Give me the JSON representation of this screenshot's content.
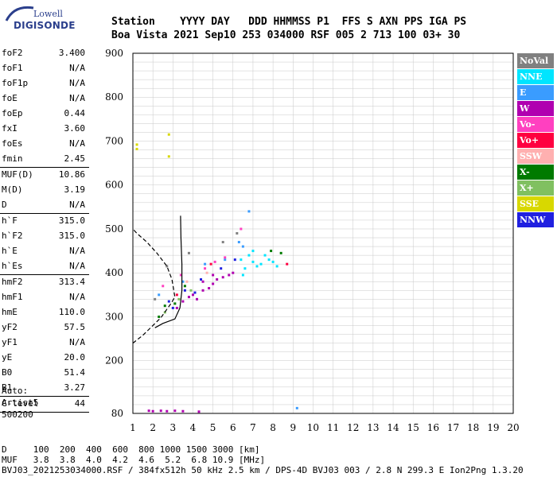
{
  "logo": {
    "line1": "Lowell",
    "line2": "DIGISONDE"
  },
  "header": {
    "row1": "Station    YYYY DAY   DDD HHMMSS P1  FFS S AXN PPS IGA PS",
    "row2": "Boa Vista 2021 Sep10 253 034000 RSF 005 2 713 100 03+ 30"
  },
  "params": [
    {
      "label": "foF2",
      "value": "3.400"
    },
    {
      "label": "foF1",
      "value": "N/A"
    },
    {
      "label": "foF1p",
      "value": "N/A"
    },
    {
      "label": "foE",
      "value": "N/A"
    },
    {
      "label": "foEp",
      "value": "0.44"
    },
    {
      "label": "fxI",
      "value": "3.60"
    },
    {
      "label": "foEs",
      "value": "N/A"
    },
    {
      "label": "fmin",
      "value": "2.45",
      "sep": true
    },
    {
      "label": "MUF(D)",
      "value": "10.86"
    },
    {
      "label": "M(D)",
      "value": "3.19"
    },
    {
      "label": "D",
      "value": "N/A",
      "sep": true
    },
    {
      "label": "h`F",
      "value": "315.0"
    },
    {
      "label": "h`F2",
      "value": "315.0"
    },
    {
      "label": "h`E",
      "value": "N/A"
    },
    {
      "label": "h`Es",
      "value": "N/A",
      "sep": true
    },
    {
      "label": "hmF2",
      "value": "313.4"
    },
    {
      "label": "hmF1",
      "value": "N/A"
    },
    {
      "label": "hmE",
      "value": "110.0"
    },
    {
      "label": "yF2",
      "value": "57.5"
    },
    {
      "label": "yF1",
      "value": "N/A"
    },
    {
      "label": "yE",
      "value": "20.0"
    },
    {
      "label": "B0",
      "value": "51.4"
    },
    {
      "label": "B1",
      "value": "3.27",
      "sep": true
    },
    {
      "label": "C-level",
      "value": "44",
      "sep": true
    }
  ],
  "auto": {
    "line1": "Auto:",
    "line2": "Artist5",
    "line3": "500200"
  },
  "legend": [
    {
      "label": "NoVal",
      "color": "#808080"
    },
    {
      "label": "NNE",
      "color": "#00e5ff"
    },
    {
      "label": "E",
      "color": "#3a9cff"
    },
    {
      "label": "W",
      "color": "#b000b0"
    },
    {
      "label": "Vo-",
      "color": "#ff40c0"
    },
    {
      "label": "Vo+",
      "color": "#ff0040"
    },
    {
      "label": "SSW",
      "color": "#ffb0b0"
    },
    {
      "label": "X-",
      "color": "#007a00"
    },
    {
      "label": "X+",
      "color": "#80c060"
    },
    {
      "label": "SSE",
      "color": "#d8d800"
    },
    {
      "label": "NNW",
      "color": "#2020e0"
    }
  ],
  "footer": {
    "line1": "D     100  200  400  600  800 1000 1500 3000 [km]",
    "line2": "MUF   3.8  3.8  4.0  4.2  4.6  5.2  6.8 10.9 [MHz]",
    "line3": "BVJ03_2021253034000.RSF / 384fx512h 50 kHz 2.5 km / DPS-4D BVJ03 003 / 2.8 N 299.3 E Ion2Png 1.3.20"
  },
  "chart_data": {
    "type": "scatter",
    "xlabel": "",
    "ylabel": "",
    "xlim": [
      1,
      20
    ],
    "ylim": [
      80,
      900
    ],
    "x_ticks": [
      1,
      2,
      3,
      4,
      5,
      6,
      7,
      8,
      9,
      10,
      11,
      12,
      13,
      14,
      15,
      16,
      17,
      18,
      19,
      20
    ],
    "y_ticks": [
      80,
      200,
      300,
      400,
      500,
      600,
      700,
      800,
      900
    ],
    "grid": true,
    "legend_position": "right",
    "series": [
      {
        "color": "#b000b0",
        "points": [
          [
            3.5,
            335
          ],
          [
            4,
            350
          ],
          [
            4.5,
            360
          ],
          [
            5,
            375
          ],
          [
            5.5,
            390
          ],
          [
            6,
            400
          ],
          [
            3.2,
            320
          ],
          [
            4.2,
            340
          ],
          [
            4.8,
            365
          ],
          [
            5.2,
            385
          ],
          [
            5.8,
            395
          ],
          [
            3.8,
            345
          ],
          [
            4.5,
            380
          ],
          [
            5,
            395
          ]
        ]
      },
      {
        "color": "#00e5ff",
        "points": [
          [
            6.6,
            410
          ],
          [
            7,
            425
          ],
          [
            7.4,
            420
          ],
          [
            7.8,
            430
          ],
          [
            6.8,
            440
          ],
          [
            7.2,
            415
          ],
          [
            6.5,
            395
          ],
          [
            7.6,
            440
          ],
          [
            8,
            425
          ],
          [
            8.2,
            415
          ],
          [
            7,
            450
          ],
          [
            6.4,
            430
          ]
        ]
      },
      {
        "color": "#3a9cff",
        "points": [
          [
            2.3,
            350
          ],
          [
            3.5,
            380
          ],
          [
            4.6,
            420
          ],
          [
            5.6,
            430
          ],
          [
            6.3,
            470
          ],
          [
            6.8,
            540
          ],
          [
            6.5,
            460
          ]
        ]
      },
      {
        "color": "#2020e0",
        "points": [
          [
            2.8,
            335
          ],
          [
            3.6,
            360
          ],
          [
            4.4,
            385
          ],
          [
            5.4,
            410
          ],
          [
            6.1,
            430
          ],
          [
            3,
            320
          ],
          [
            4.1,
            355
          ]
        ]
      },
      {
        "color": "#007a00",
        "points": [
          [
            2.3,
            300
          ],
          [
            3.1,
            330
          ],
          [
            3.6,
            370
          ],
          [
            7.9,
            450
          ],
          [
            8.4,
            445
          ],
          [
            2.6,
            325
          ]
        ]
      },
      {
        "color": "#80c060",
        "points": [
          [
            2.6,
            310
          ],
          [
            3.3,
            340
          ],
          [
            3.9,
            360
          ]
        ]
      },
      {
        "color": "#ff40c0",
        "points": [
          [
            2.5,
            370
          ],
          [
            3.4,
            395
          ],
          [
            4.6,
            410
          ],
          [
            5.6,
            435
          ],
          [
            6.4,
            500
          ],
          [
            5.1,
            425
          ]
        ]
      },
      {
        "color": "#ff0040",
        "points": [
          [
            3.2,
            350
          ],
          [
            4.9,
            420
          ],
          [
            8.7,
            420
          ]
        ]
      },
      {
        "color": "#808080",
        "points": [
          [
            2.7,
            415
          ],
          [
            3.8,
            445
          ],
          [
            5.5,
            470
          ],
          [
            6.2,
            490
          ],
          [
            2.1,
            340
          ]
        ]
      },
      {
        "color": "#ffb0b0",
        "points": [
          [
            3.7,
            380
          ],
          [
            4.7,
            400
          ]
        ]
      },
      {
        "color": "#d8d800",
        "points": [
          [
            1.2,
            692
          ],
          [
            2.8,
            715
          ],
          [
            2.8,
            665
          ],
          [
            1.2,
            682
          ]
        ]
      },
      {
        "color": "#b000b0",
        "points": [
          [
            1.8,
            86
          ],
          [
            2.0,
            85
          ],
          [
            2.4,
            86
          ],
          [
            2.7,
            85
          ],
          [
            3.1,
            86
          ],
          [
            3.5,
            85
          ],
          [
            4.3,
            84
          ]
        ]
      },
      {
        "color": "#3a9cff",
        "points": [
          [
            9.2,
            92
          ]
        ]
      }
    ],
    "trace_solid": [
      [
        2.1,
        275
      ],
      [
        2.5,
        285
      ],
      [
        3.1,
        295
      ],
      [
        3.35,
        320
      ],
      [
        3.45,
        360
      ],
      [
        3.45,
        420
      ],
      [
        3.4,
        480
      ],
      [
        3.38,
        530
      ]
    ],
    "trace_dashed": [
      [
        1,
        240
      ],
      [
        1.5,
        258
      ],
      [
        2.4,
        298
      ],
      [
        2.9,
        330
      ],
      [
        3.1,
        345
      ],
      [
        2.95,
        385
      ],
      [
        2.7,
        415
      ],
      [
        2.2,
        445
      ],
      [
        1.7,
        470
      ],
      [
        1.2,
        490
      ],
      [
        1,
        500
      ]
    ]
  }
}
